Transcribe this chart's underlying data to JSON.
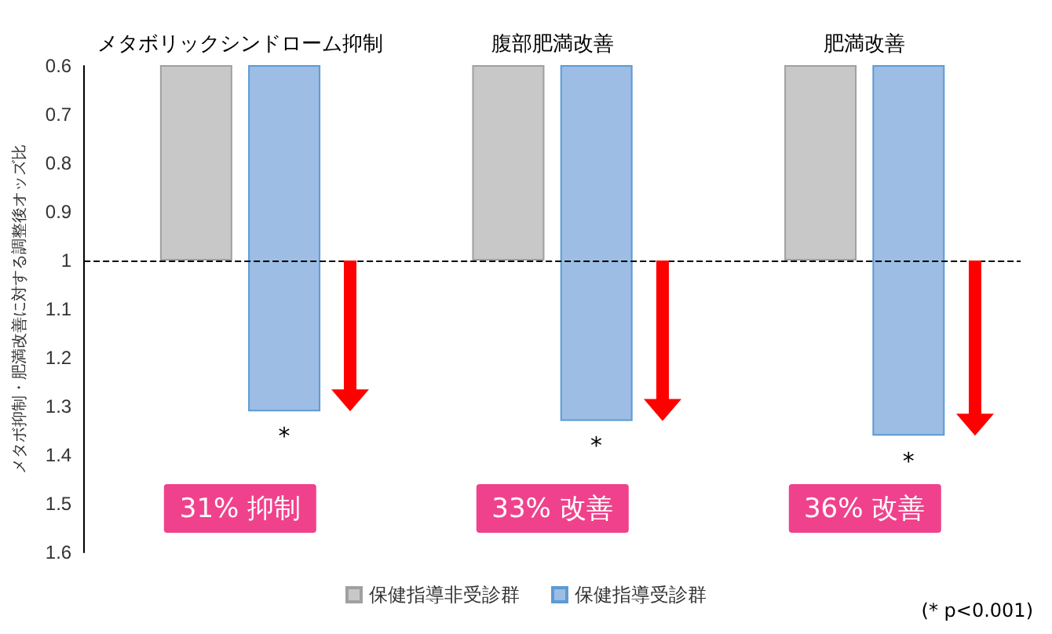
{
  "chart_data": {
    "type": "bar",
    "ylabel": "メタボ抑制・肥満改善に対する調整後オッズ比",
    "categories": [
      "メタボリックシンドローム抑制",
      "腹部肥満改善",
      "肥満改善"
    ],
    "series": [
      {
        "name": "保健指導非受診群",
        "color": "#c8c8c8",
        "values": [
          1,
          1,
          1
        ]
      },
      {
        "name": "保健指導受診群",
        "color": "#9dbde4",
        "values": [
          1.31,
          1.33,
          1.36
        ]
      }
    ],
    "ylim": [
      1.6,
      0.6
    ],
    "yticks": [
      0.6,
      0.7,
      0.8,
      0.9,
      1,
      1.1,
      1.2,
      1.3,
      1.4,
      1.5,
      1.6
    ],
    "ref_lines": [
      {
        "axis": "y",
        "value": 1,
        "line_style": "dashed",
        "color": "#000000"
      }
    ],
    "annotations": [
      "*",
      "*",
      "*",
      "31% 抑制",
      "33% 改善",
      "36% 改善",
      "(* p<0.001)"
    ],
    "grid": false,
    "legend": "bottom"
  }
}
